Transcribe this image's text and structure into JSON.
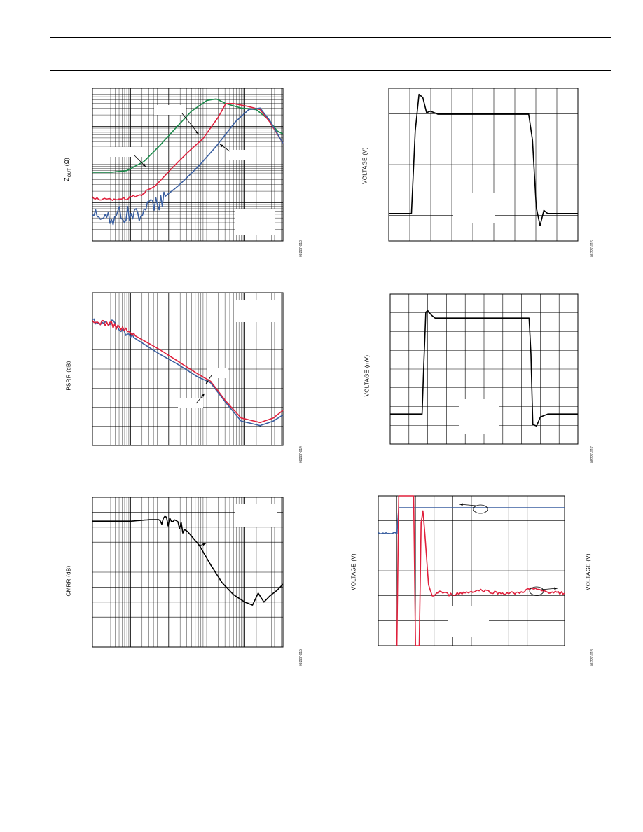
{
  "header": {
    "title": ""
  },
  "colors": {
    "grid": "#000000",
    "green": "#1a8a4a",
    "red": "#e0203c",
    "blue": "#3a5fa0",
    "black": "#000000"
  },
  "charts": [
    {
      "id": "zout",
      "ylabel_main": "Z",
      "ylabel_sub": "OUT",
      "ylabel_unit": " (Ω)",
      "figure_id": "08227-013",
      "chart_data": {
        "type": "line",
        "xscale": "log",
        "yscale": "log",
        "xlim": [
          0,
          1
        ],
        "ylim": [
          0,
          1
        ],
        "series": [
          {
            "color_key": "green",
            "values": [
              [
                0.0,
                0.45
              ],
              [
                0.1,
                0.45
              ],
              [
                0.18,
                0.46
              ],
              [
                0.27,
                0.52
              ],
              [
                0.35,
                0.62
              ],
              [
                0.43,
                0.73
              ],
              [
                0.52,
                0.85
              ],
              [
                0.6,
                0.92
              ],
              [
                0.65,
                0.93
              ],
              [
                0.7,
                0.9
              ],
              [
                0.78,
                0.87
              ],
              [
                0.86,
                0.86
              ],
              [
                0.92,
                0.8
              ],
              [
                0.97,
                0.72
              ],
              [
                1.0,
                0.7
              ]
            ]
          },
          {
            "color_key": "red",
            "values": [
              [
                0.0,
                0.28
              ],
              [
                0.08,
                0.27
              ],
              [
                0.18,
                0.28
              ],
              [
                0.25,
                0.3
              ],
              [
                0.33,
                0.36
              ],
              [
                0.42,
                0.48
              ],
              [
                0.5,
                0.58
              ],
              [
                0.58,
                0.67
              ],
              [
                0.66,
                0.81
              ],
              [
                0.7,
                0.9
              ],
              [
                0.74,
                0.9
              ],
              [
                0.82,
                0.88
              ],
              [
                0.88,
                0.86
              ],
              [
                0.93,
                0.78
              ],
              [
                1.0,
                0.64
              ]
            ]
          },
          {
            "color_key": "blue",
            "values": [
              [
                0.0,
                0.15
              ],
              [
                0.05,
                0.18
              ],
              [
                0.1,
                0.16
              ],
              [
                0.15,
                0.17
              ],
              [
                0.22,
                0.18
              ],
              [
                0.28,
                0.2
              ],
              [
                0.35,
                0.26
              ],
              [
                0.45,
                0.36
              ],
              [
                0.55,
                0.48
              ],
              [
                0.65,
                0.62
              ],
              [
                0.75,
                0.78
              ],
              [
                0.82,
                0.86
              ],
              [
                0.88,
                0.87
              ],
              [
                0.93,
                0.79
              ],
              [
                1.0,
                0.64
              ]
            ]
          }
        ],
        "grid": true
      }
    },
    {
      "id": "step-volts",
      "ylabel": "VOLTAGE (V)",
      "figure_id": "08227-016",
      "chart_data": {
        "type": "line",
        "xlim": [
          0,
          1
        ],
        "ylim": [
          0,
          1
        ],
        "series": [
          {
            "color_key": "black",
            "values": [
              [
                0.0,
                0.18
              ],
              [
                0.12,
                0.18
              ],
              [
                0.14,
                0.72
              ],
              [
                0.16,
                0.96
              ],
              [
                0.18,
                0.94
              ],
              [
                0.2,
                0.84
              ],
              [
                0.22,
                0.85
              ],
              [
                0.26,
                0.83
              ],
              [
                0.55,
                0.83
              ],
              [
                0.74,
                0.83
              ],
              [
                0.76,
                0.66
              ],
              [
                0.78,
                0.22
              ],
              [
                0.8,
                0.1
              ],
              [
                0.82,
                0.2
              ],
              [
                0.84,
                0.18
              ],
              [
                1.0,
                0.18
              ]
            ]
          }
        ],
        "grid": true
      }
    },
    {
      "id": "psrr",
      "ylabel": "PSRR (dB)",
      "figure_id": "08227-014",
      "chart_data": {
        "type": "line",
        "xscale": "log",
        "xlim": [
          0,
          1
        ],
        "ylim": [
          0,
          1
        ],
        "series": [
          {
            "color_key": "blue",
            "values": [
              [
                0.0,
                0.82
              ],
              [
                0.05,
                0.8
              ],
              [
                0.1,
                0.81
              ],
              [
                0.15,
                0.76
              ],
              [
                0.25,
                0.68
              ],
              [
                0.35,
                0.6
              ],
              [
                0.45,
                0.53
              ],
              [
                0.55,
                0.45
              ],
              [
                0.62,
                0.41
              ],
              [
                0.7,
                0.28
              ],
              [
                0.78,
                0.16
              ],
              [
                0.88,
                0.13
              ],
              [
                0.95,
                0.16
              ],
              [
                1.0,
                0.2
              ]
            ]
          },
          {
            "color_key": "red",
            "values": [
              [
                0.0,
                0.8
              ],
              [
                0.05,
                0.81
              ],
              [
                0.1,
                0.79
              ],
              [
                0.15,
                0.77
              ],
              [
                0.25,
                0.7
              ],
              [
                0.35,
                0.63
              ],
              [
                0.45,
                0.55
              ],
              [
                0.55,
                0.47
              ],
              [
                0.62,
                0.42
              ],
              [
                0.7,
                0.29
              ],
              [
                0.78,
                0.18
              ],
              [
                0.88,
                0.15
              ],
              [
                0.95,
                0.18
              ],
              [
                1.0,
                0.23
              ]
            ]
          }
        ],
        "grid": true
      }
    },
    {
      "id": "step-mv",
      "ylabel": "VOLTAGE (mV)",
      "figure_id": "08227-017",
      "chart_data": {
        "type": "line",
        "xlim": [
          0,
          1
        ],
        "ylim": [
          0,
          1
        ],
        "series": [
          {
            "color_key": "black",
            "values": [
              [
                0.0,
                0.2
              ],
              [
                0.17,
                0.2
              ],
              [
                0.18,
                0.55
              ],
              [
                0.19,
                0.88
              ],
              [
                0.2,
                0.89
              ],
              [
                0.22,
                0.86
              ],
              [
                0.24,
                0.84
              ],
              [
                0.5,
                0.84
              ],
              [
                0.74,
                0.84
              ],
              [
                0.75,
                0.6
              ],
              [
                0.76,
                0.13
              ],
              [
                0.78,
                0.12
              ],
              [
                0.8,
                0.18
              ],
              [
                0.84,
                0.2
              ],
              [
                1.0,
                0.2
              ]
            ]
          }
        ],
        "grid": true
      }
    },
    {
      "id": "cmrr",
      "ylabel": "CMRR (dB)",
      "figure_id": "08227-015",
      "chart_data": {
        "type": "line",
        "xscale": "log",
        "xlim": [
          0,
          1
        ],
        "ylim": [
          0,
          1
        ],
        "series": [
          {
            "color_key": "black",
            "values": [
              [
                0.0,
                0.84
              ],
              [
                0.1,
                0.84
              ],
              [
                0.2,
                0.84
              ],
              [
                0.3,
                0.85
              ],
              [
                0.38,
                0.85
              ],
              [
                0.44,
                0.82
              ],
              [
                0.5,
                0.77
              ],
              [
                0.56,
                0.68
              ],
              [
                0.62,
                0.55
              ],
              [
                0.68,
                0.43
              ],
              [
                0.74,
                0.35
              ],
              [
                0.8,
                0.3
              ],
              [
                0.84,
                0.28
              ],
              [
                0.87,
                0.36
              ],
              [
                0.9,
                0.3
              ],
              [
                0.93,
                0.34
              ],
              [
                0.97,
                0.38
              ],
              [
                1.0,
                0.42
              ]
            ]
          }
        ],
        "grid": true
      }
    },
    {
      "id": "overload",
      "ylabel_left": "VOLTAGE (V)",
      "ylabel_right": "VOLTAGE (V)",
      "figure_id": "08227-018",
      "chart_data": {
        "type": "line",
        "xlim": [
          0,
          1
        ],
        "ylim": [
          0,
          1
        ],
        "series": [
          {
            "color_key": "blue",
            "values": [
              [
                0.0,
                0.75
              ],
              [
                0.1,
                0.75
              ],
              [
                0.11,
                0.92
              ],
              [
                1.0,
                0.92
              ]
            ]
          },
          {
            "color_key": "red",
            "values": [
              [
                0.1,
                0.0
              ],
              [
                0.11,
                1.0
              ],
              [
                0.19,
                1.0
              ],
              [
                0.2,
                0.0
              ],
              [
                0.22,
                0.0
              ],
              [
                0.23,
                0.82
              ],
              [
                0.24,
                0.9
              ],
              [
                0.25,
                0.75
              ],
              [
                0.27,
                0.4
              ],
              [
                0.29,
                0.33
              ],
              [
                0.33,
                0.36
              ],
              [
                0.38,
                0.34
              ],
              [
                0.45,
                0.35
              ],
              [
                0.55,
                0.37
              ],
              [
                0.65,
                0.35
              ],
              [
                0.75,
                0.35
              ],
              [
                0.82,
                0.38
              ],
              [
                0.9,
                0.36
              ],
              [
                1.0,
                0.35
              ]
            ]
          }
        ],
        "grid": true
      }
    }
  ]
}
